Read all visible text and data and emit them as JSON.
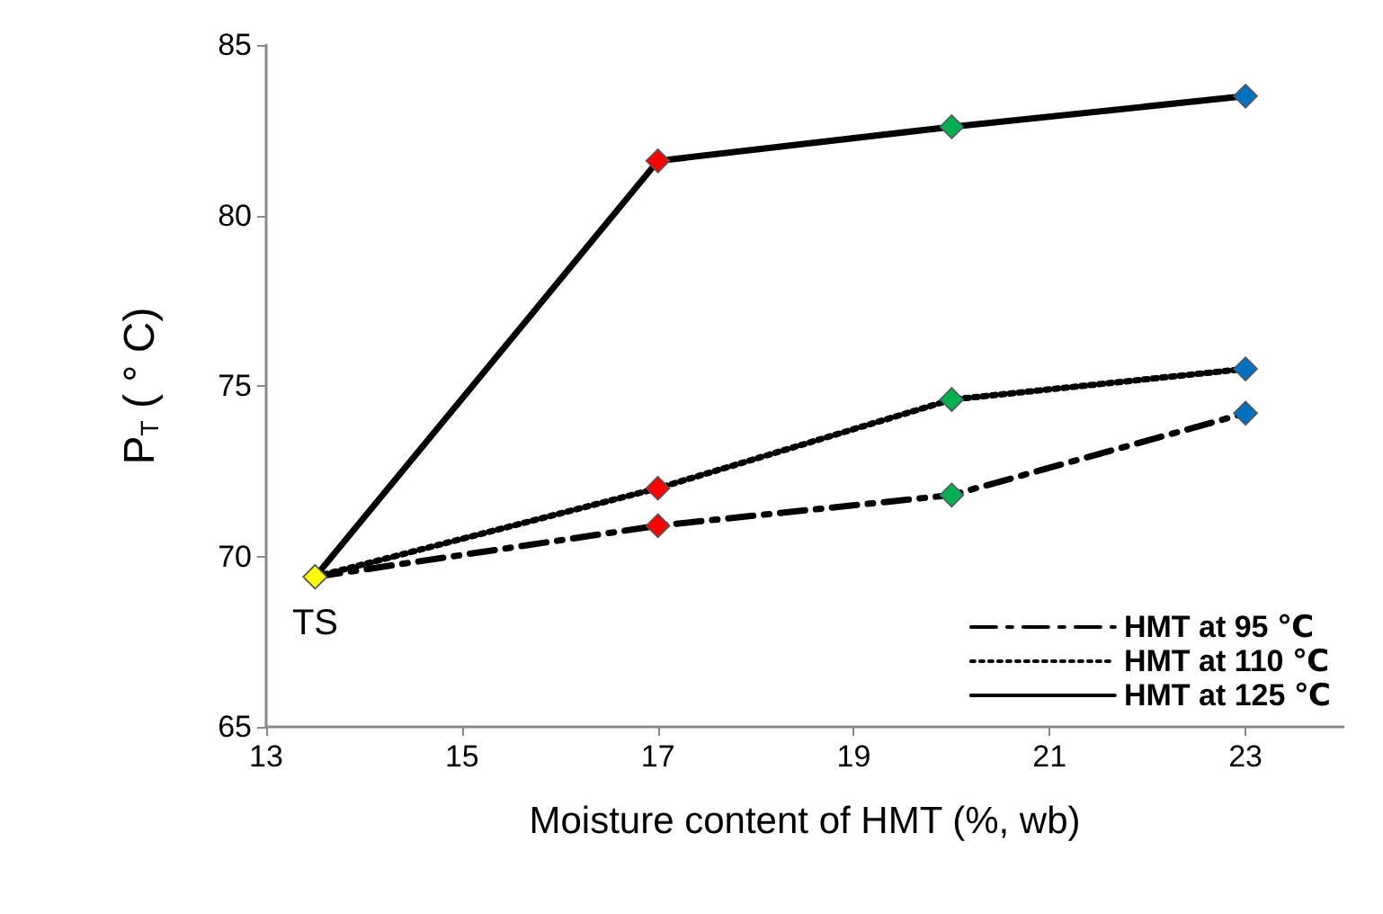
{
  "chart_data": {
    "type": "line",
    "xlabel": "Moisture content of HMT (%, wb)",
    "ylabel": "P$_{T}$ ( ° C)",
    "xlim": [
      13,
      24
    ],
    "xticks": [
      13,
      15,
      17,
      19,
      21,
      23
    ],
    "ylim": [
      65,
      85
    ],
    "yticks": [
      65,
      70,
      75,
      80,
      85
    ],
    "grid": false,
    "legend": "bottom right",
    "marker": "diamond",
    "annotations": [
      {
        "text": "TS",
        "x": 13.5,
        "y": 69.4
      }
    ],
    "series": [
      {
        "name": "HMT at 95 ℃",
        "color": "#000000",
        "line_style": "dashed",
        "x": [
          13.5,
          17,
          20,
          23
        ],
        "values": [
          69.4,
          70.9,
          71.8,
          74.2
        ],
        "colors": [
          "#ffff00",
          "#ff0000",
          "#00b050",
          "#0070c0"
        ]
      },
      {
        "name": "HMT at 110 ℃",
        "color": "#000000",
        "line_style": "dotted",
        "x": [
          13.5,
          17,
          20,
          23
        ],
        "values": [
          69.4,
          72.0,
          74.6,
          75.5
        ],
        "colors": [
          "#ffff00",
          "#ff0000",
          "#00b050",
          "#0070c0"
        ]
      },
      {
        "name": "HMT at 125 ℃",
        "color": "#000000",
        "line_style": "solid",
        "x": [
          13.5,
          17,
          20,
          23
        ],
        "values": [
          69.4,
          81.6,
          82.6,
          83.5
        ],
        "colors": [
          "#ffff00",
          "#ff0000",
          "#00b050",
          "#0070c0"
        ]
      }
    ]
  }
}
